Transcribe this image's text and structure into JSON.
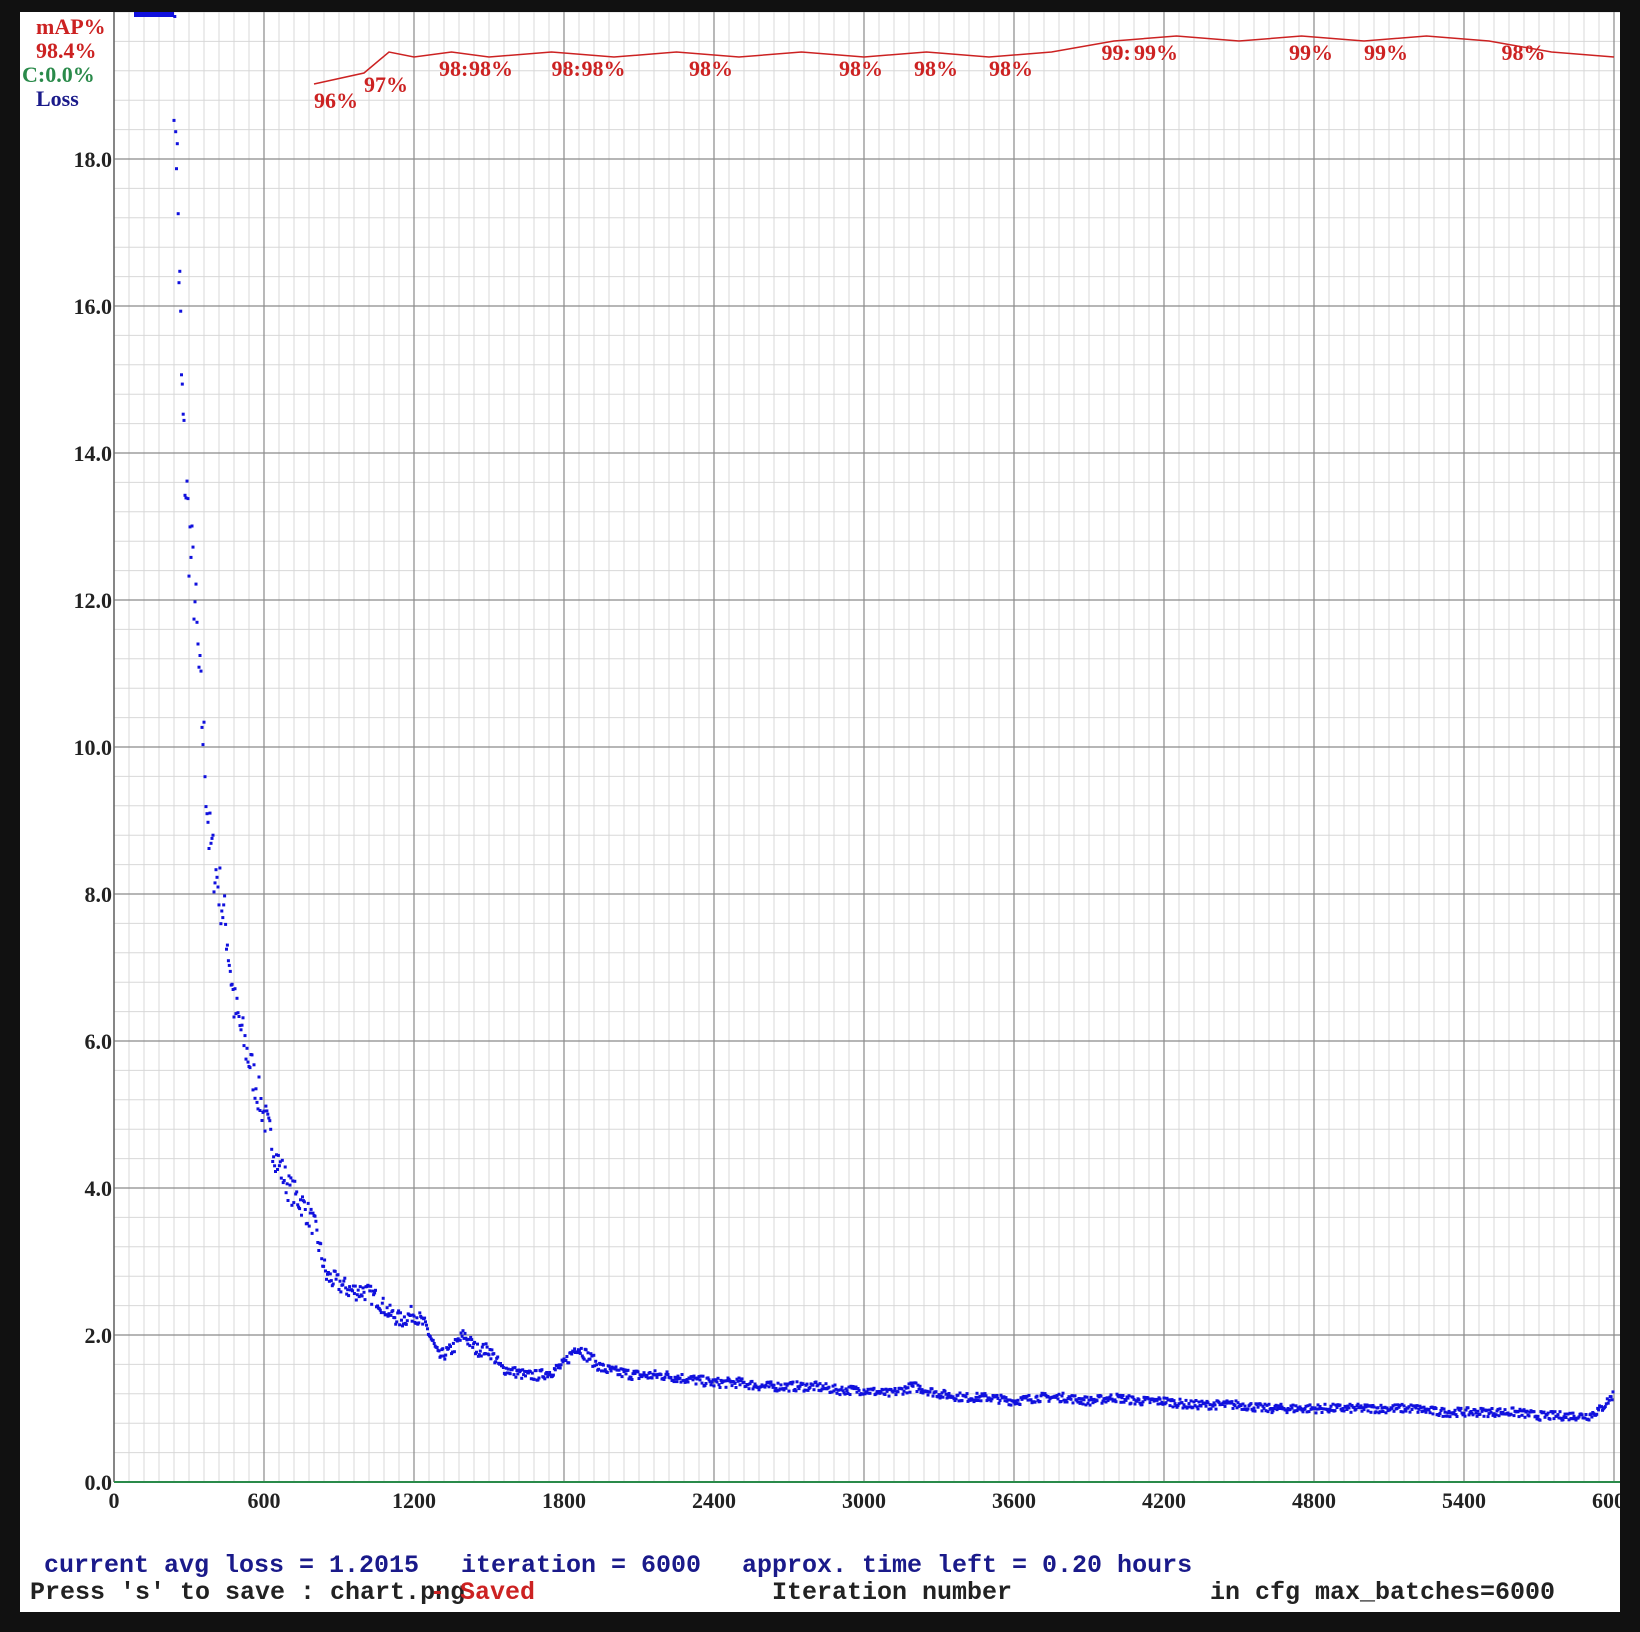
{
  "legend": {
    "map_label": "mAP%",
    "map_value": "98.4%",
    "c_label": "C:0.0%",
    "loss_label": "Loss"
  },
  "colors": {
    "loss": "#1010dd",
    "map": "#cc2222",
    "c": "#2a8a4a",
    "text_dark": "#222222",
    "text_blue": "#1a1a8a"
  },
  "footer": {
    "avg_loss": "current avg loss = 1.2015",
    "iteration": "iteration = 6000",
    "time_left": "approx. time left = 0.20 hours",
    "save_hint": "Press 's' to save : chart.png",
    "saved": "- Saved",
    "xlabel": "Iteration number",
    "max_batches": "in cfg max_batches=6000"
  },
  "chart_data": {
    "type": "scatter",
    "title": "",
    "xlabel": "Iteration number",
    "ylabel": "Loss",
    "xlim": [
      0,
      6000
    ],
    "ylim": [
      0,
      20
    ],
    "grid": true,
    "xticks": [
      "0",
      "600",
      "1200",
      "1800",
      "2400",
      "3000",
      "3600",
      "4200",
      "4800",
      "5400",
      "6000"
    ],
    "yticks": [
      "0.0",
      "2.0",
      "4.0",
      "6.0",
      "8.0",
      "10.0",
      "12.0",
      "14.0",
      "16.0",
      "18.0"
    ],
    "series": [
      {
        "name": "Loss",
        "x": [
          240,
          250,
          260,
          270,
          280,
          300,
          320,
          340,
          360,
          380,
          400,
          420,
          450,
          480,
          520,
          560,
          600,
          650,
          700,
          750,
          800,
          850,
          900,
          950,
          1000,
          1050,
          1100,
          1150,
          1200,
          1250,
          1300,
          1350,
          1400,
          1450,
          1500,
          1550,
          1600,
          1650,
          1700,
          1750,
          1800,
          1850,
          1900,
          1950,
          2000,
          2100,
          2200,
          2300,
          2400,
          2500,
          2600,
          2700,
          2800,
          2900,
          3000,
          3100,
          3200,
          3300,
          3400,
          3500,
          3600,
          3700,
          3800,
          3900,
          4000,
          4100,
          4200,
          4300,
          4400,
          4500,
          4600,
          4700,
          4800,
          4900,
          5000,
          5100,
          5200,
          5300,
          5400,
          5500,
          5600,
          5700,
          5800,
          5900,
          5950,
          6000
        ],
        "y": [
          19.5,
          18.4,
          16.6,
          15.0,
          14.0,
          12.9,
          12.2,
          11.0,
          10.0,
          8.8,
          8.4,
          8.1,
          7.5,
          6.5,
          6.0,
          5.5,
          5.0,
          4.4,
          4.0,
          3.8,
          3.5,
          2.8,
          2.7,
          2.6,
          2.6,
          2.5,
          2.3,
          2.2,
          2.3,
          2.1,
          1.7,
          1.8,
          2.0,
          1.8,
          1.8,
          1.55,
          1.5,
          1.45,
          1.45,
          1.5,
          1.6,
          1.85,
          1.7,
          1.55,
          1.5,
          1.45,
          1.45,
          1.4,
          1.35,
          1.35,
          1.3,
          1.3,
          1.3,
          1.25,
          1.25,
          1.2,
          1.3,
          1.2,
          1.15,
          1.15,
          1.1,
          1.15,
          1.15,
          1.1,
          1.15,
          1.1,
          1.1,
          1.05,
          1.05,
          1.05,
          1.0,
          1.0,
          1.0,
          1.0,
          1.0,
          1.0,
          1.0,
          0.95,
          0.95,
          0.95,
          0.95,
          0.9,
          0.9,
          0.9,
          1.0,
          1.2
        ]
      }
    ],
    "map_series": {
      "name": "mAP%",
      "x": [
        800,
        1000,
        1100,
        1200,
        1350,
        1500,
        1750,
        2000,
        2250,
        2500,
        2750,
        3000,
        3250,
        3500,
        3750,
        4000,
        4250,
        4500,
        4750,
        5000,
        5250,
        5500,
        5750,
        6000
      ],
      "y": [
        96,
        97,
        98,
        98,
        98,
        98,
        98,
        98,
        98,
        98,
        98,
        98,
        98,
        98,
        98,
        99,
        99,
        99,
        99,
        99,
        99,
        99,
        98,
        98
      ],
      "labels": [
        {
          "x": 800,
          "text": "96%"
        },
        {
          "x": 1000,
          "text": "97%"
        },
        {
          "x": 1300,
          "text": "98:"
        },
        {
          "x": 1420,
          "text": "98%"
        },
        {
          "x": 1750,
          "text": "98:"
        },
        {
          "x": 1870,
          "text": "98%"
        },
        {
          "x": 2300,
          "text": "98%"
        },
        {
          "x": 2900,
          "text": "98%"
        },
        {
          "x": 3200,
          "text": "98%"
        },
        {
          "x": 3500,
          "text": "98%"
        },
        {
          "x": 3950,
          "text": "99:"
        },
        {
          "x": 4080,
          "text": "99%"
        },
        {
          "x": 4700,
          "text": "99%"
        },
        {
          "x": 5000,
          "text": "99%"
        },
        {
          "x": 5550,
          "text": "98%"
        }
      ]
    }
  }
}
